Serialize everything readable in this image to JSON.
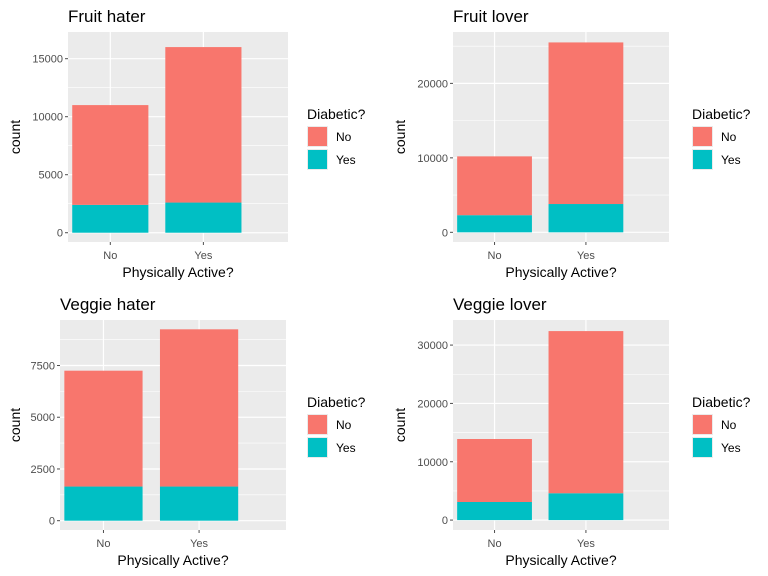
{
  "legend": {
    "title": "Diabetic?",
    "items": [
      {
        "label": "No",
        "color": "#F8766D"
      },
      {
        "label": "Yes",
        "color": "#00BFC4"
      }
    ]
  },
  "style": {
    "panel_bg": "#EBEBEB",
    "grid_color": "#FFFFFF",
    "tick_color": "#4D4D4D"
  },
  "chart_data": [
    {
      "type": "bar",
      "stacked": true,
      "title": "Fruit hater",
      "xlabel": "Physically Active?",
      "ylabel": "count",
      "categories": [
        "No",
        "Yes"
      ],
      "series": [
        {
          "name": "No",
          "values": [
            8600,
            13400
          ]
        },
        {
          "name": "Yes",
          "values": [
            2400,
            2600
          ]
        }
      ],
      "yticks": [
        0,
        5000,
        10000,
        15000
      ],
      "ylim": [
        -800,
        17300
      ]
    },
    {
      "type": "bar",
      "stacked": true,
      "title": "Fruit lover",
      "xlabel": "Physically Active?",
      "ylabel": "count",
      "categories": [
        "No",
        "Yes"
      ],
      "series": [
        {
          "name": "No",
          "values": [
            7900,
            21700
          ]
        },
        {
          "name": "Yes",
          "values": [
            2300,
            3800
          ]
        }
      ],
      "yticks": [
        0,
        10000,
        20000
      ],
      "ylim": [
        -1300,
        26900
      ]
    },
    {
      "type": "bar",
      "stacked": true,
      "title": "Veggie hater",
      "xlabel": "Physically Active?",
      "ylabel": "count",
      "categories": [
        "No",
        "Yes"
      ],
      "series": [
        {
          "name": "No",
          "values": [
            5600,
            7600
          ]
        },
        {
          "name": "Yes",
          "values": [
            1650,
            1650
          ]
        }
      ],
      "yticks": [
        0,
        2500,
        5000,
        7500
      ],
      "ylim": [
        -450,
        9700
      ]
    },
    {
      "type": "bar",
      "stacked": true,
      "title": "Veggie lover",
      "xlabel": "Physically Active?",
      "ylabel": "count",
      "categories": [
        "No",
        "Yes"
      ],
      "series": [
        {
          "name": "No",
          "values": [
            10800,
            27800
          ]
        },
        {
          "name": "Yes",
          "values": [
            3100,
            4600
          ]
        }
      ],
      "yticks": [
        0,
        10000,
        20000,
        30000
      ],
      "ylim": [
        -1700,
        34300
      ]
    }
  ]
}
